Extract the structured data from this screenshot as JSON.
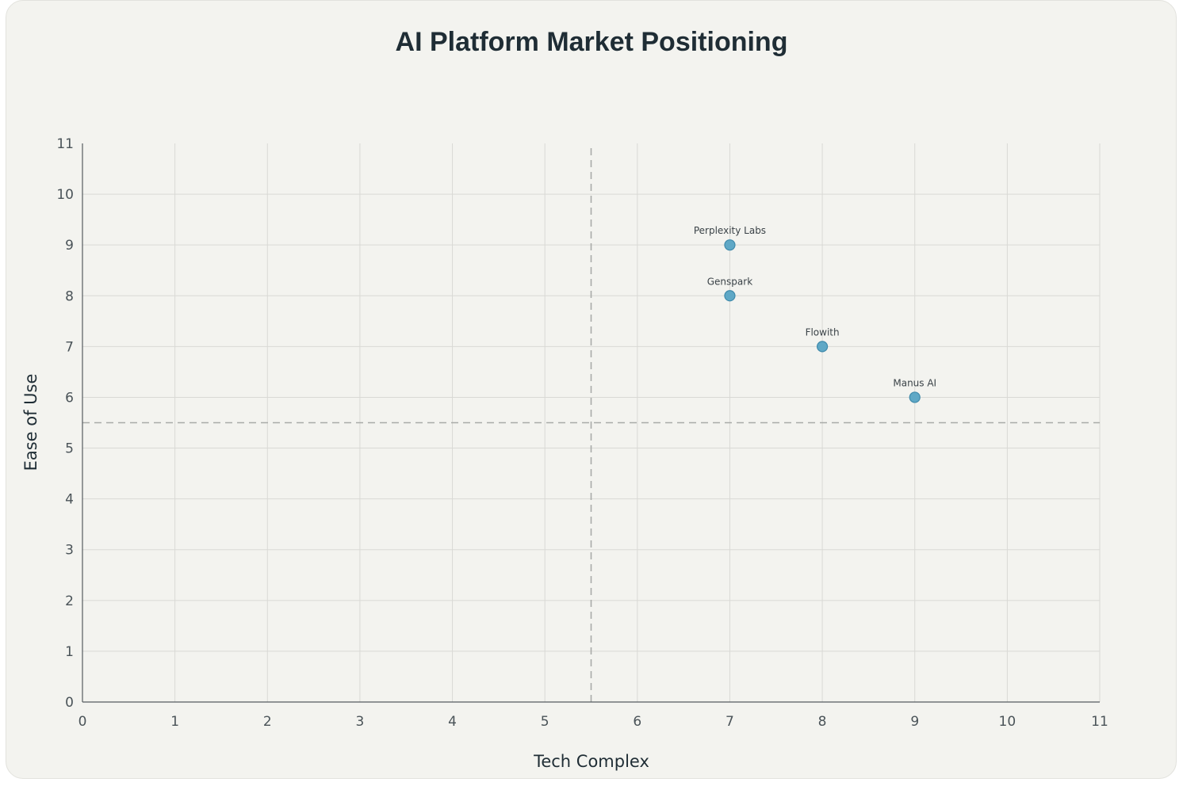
{
  "chart_data": {
    "type": "scatter",
    "title": "AI Platform Market Positioning",
    "xlabel": "Tech Complex",
    "ylabel": "Ease of Use",
    "xlim": [
      0,
      11
    ],
    "ylim": [
      0,
      11
    ],
    "xticks": [
      "0",
      "1",
      "2",
      "3",
      "4",
      "5",
      "6",
      "7",
      "8",
      "9",
      "10",
      "11"
    ],
    "yticks": [
      "0",
      "1",
      "2",
      "3",
      "4",
      "5",
      "6",
      "7",
      "8",
      "9",
      "10",
      "11"
    ],
    "grid": true,
    "reference_lines": {
      "x": 5.5,
      "y": 5.5
    },
    "points": [
      {
        "label": "Perplexity Labs",
        "x": 7,
        "y": 9
      },
      {
        "label": "Genspark",
        "x": 7,
        "y": 8
      },
      {
        "label": "Flowith",
        "x": 8,
        "y": 7
      },
      {
        "label": "Manus AI",
        "x": 9,
        "y": 6
      }
    ],
    "colors": {
      "point": "#5fa8c6",
      "point_stroke": "#3f8aab",
      "grid": "#d9d9d5",
      "axis": "#555b5f",
      "reference": "#a9aba8"
    }
  }
}
